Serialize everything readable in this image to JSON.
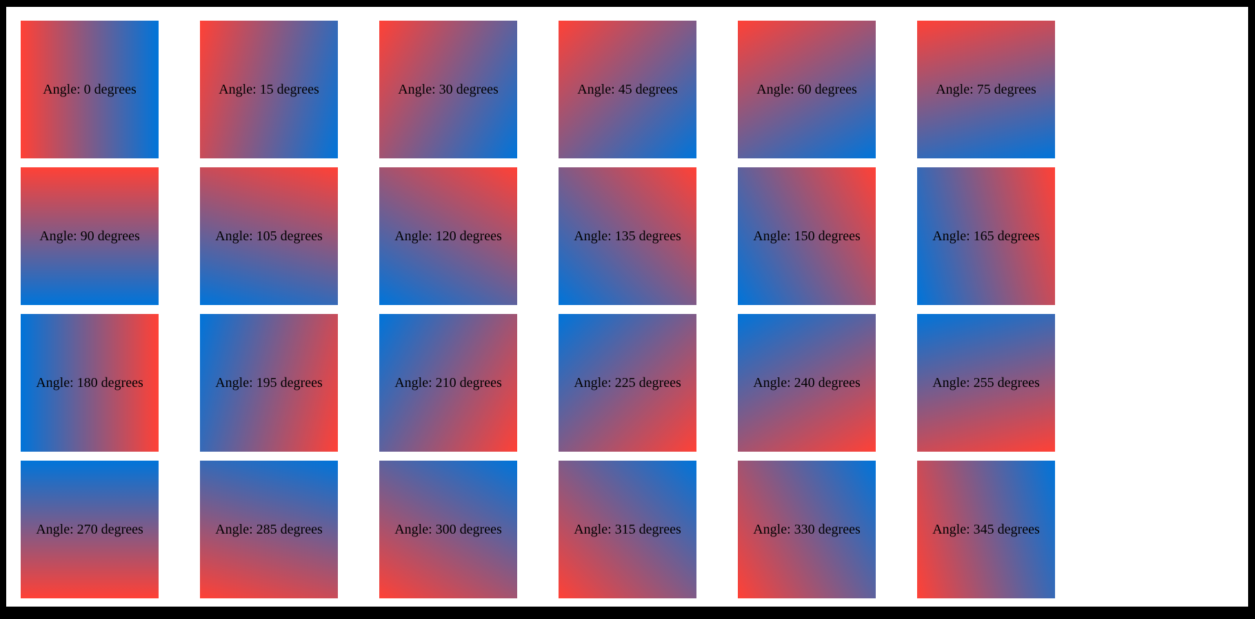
{
  "page": {
    "border_color": "#000000",
    "surface_color": "#ffffff"
  },
  "colors": {
    "gradient_start_red": "#ff4136",
    "gradient_end_blue": "#0074d9",
    "label_text": "#000000"
  },
  "boxes": [
    {
      "angle": 0,
      "css_gradient_angle": 90,
      "label": "Angle: 0 degrees"
    },
    {
      "angle": 15,
      "css_gradient_angle": 105,
      "label": "Angle: 15 degrees"
    },
    {
      "angle": 30,
      "css_gradient_angle": 120,
      "label": "Angle: 30 degrees"
    },
    {
      "angle": 45,
      "css_gradient_angle": 135,
      "label": "Angle: 45 degrees"
    },
    {
      "angle": 60,
      "css_gradient_angle": 150,
      "label": "Angle: 60 degrees"
    },
    {
      "angle": 75,
      "css_gradient_angle": 165,
      "label": "Angle: 75 degrees"
    },
    {
      "angle": 90,
      "css_gradient_angle": 180,
      "label": "Angle: 90 degrees"
    },
    {
      "angle": 105,
      "css_gradient_angle": 195,
      "label": "Angle: 105 degrees"
    },
    {
      "angle": 120,
      "css_gradient_angle": 210,
      "label": "Angle: 120 degrees"
    },
    {
      "angle": 135,
      "css_gradient_angle": 225,
      "label": "Angle: 135 degrees"
    },
    {
      "angle": 150,
      "css_gradient_angle": 240,
      "label": "Angle: 150 degrees"
    },
    {
      "angle": 165,
      "css_gradient_angle": 255,
      "label": "Angle: 165 degrees"
    },
    {
      "angle": 180,
      "css_gradient_angle": 270,
      "label": "Angle: 180 degrees"
    },
    {
      "angle": 195,
      "css_gradient_angle": 285,
      "label": "Angle: 195 degrees"
    },
    {
      "angle": 210,
      "css_gradient_angle": 300,
      "label": "Angle: 210 degrees"
    },
    {
      "angle": 225,
      "css_gradient_angle": 315,
      "label": "Angle: 225 degrees"
    },
    {
      "angle": 240,
      "css_gradient_angle": 330,
      "label": "Angle: 240 degrees"
    },
    {
      "angle": 255,
      "css_gradient_angle": 345,
      "label": "Angle: 255 degrees"
    },
    {
      "angle": 270,
      "css_gradient_angle": 0,
      "label": "Angle: 270 degrees"
    },
    {
      "angle": 285,
      "css_gradient_angle": 15,
      "label": "Angle: 285 degrees"
    },
    {
      "angle": 300,
      "css_gradient_angle": 30,
      "label": "Angle: 300 degrees"
    },
    {
      "angle": 315,
      "css_gradient_angle": 45,
      "label": "Angle: 315 degrees"
    },
    {
      "angle": 330,
      "css_gradient_angle": 60,
      "label": "Angle: 330 degrees"
    },
    {
      "angle": 345,
      "css_gradient_angle": 75,
      "label": "Angle: 345 degrees"
    }
  ]
}
